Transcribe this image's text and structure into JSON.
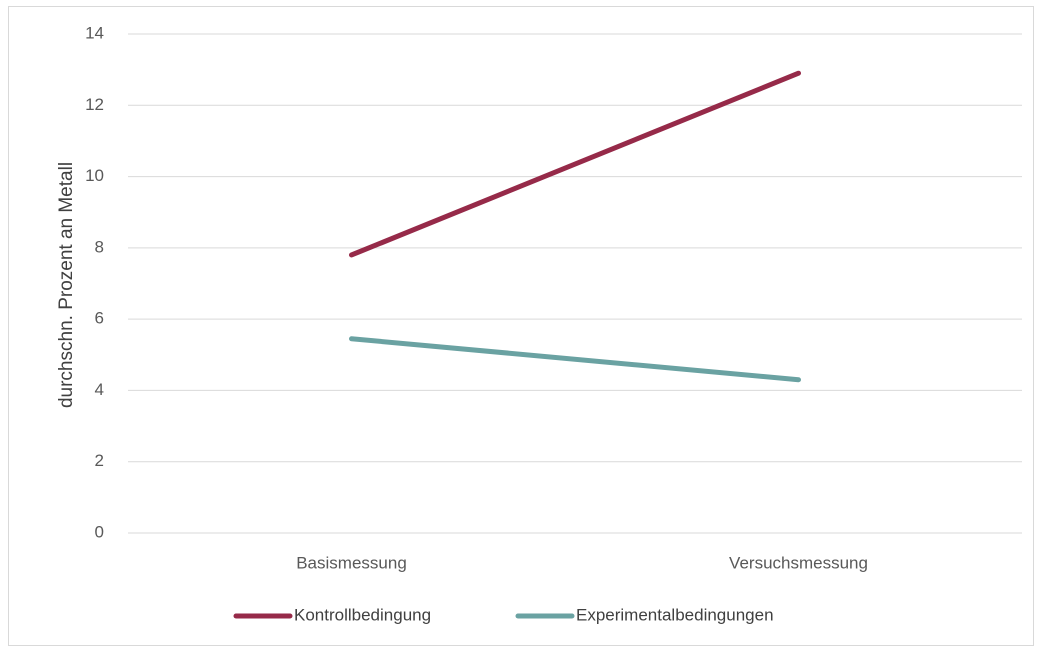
{
  "chart_data": {
    "type": "line",
    "categories": [
      "Basismessung",
      "Versuchsmessung"
    ],
    "series": [
      {
        "name": "Kontrollbedingung",
        "values": [
          7.8,
          12.9
        ],
        "color": "#962a49"
      },
      {
        "name": "Experimentalbedingungen",
        "values": [
          5.45,
          4.3
        ],
        "color": "#6aa2a2"
      }
    ],
    "ylabel": "durchschn. Prozent an Metall",
    "xlabel": "",
    "ylim": [
      0,
      14
    ],
    "yticks": [
      0,
      2,
      4,
      6,
      8,
      10,
      12,
      14
    ],
    "grid": true,
    "gridline_color": "#d9d9d9",
    "legend_position": "bottom"
  }
}
